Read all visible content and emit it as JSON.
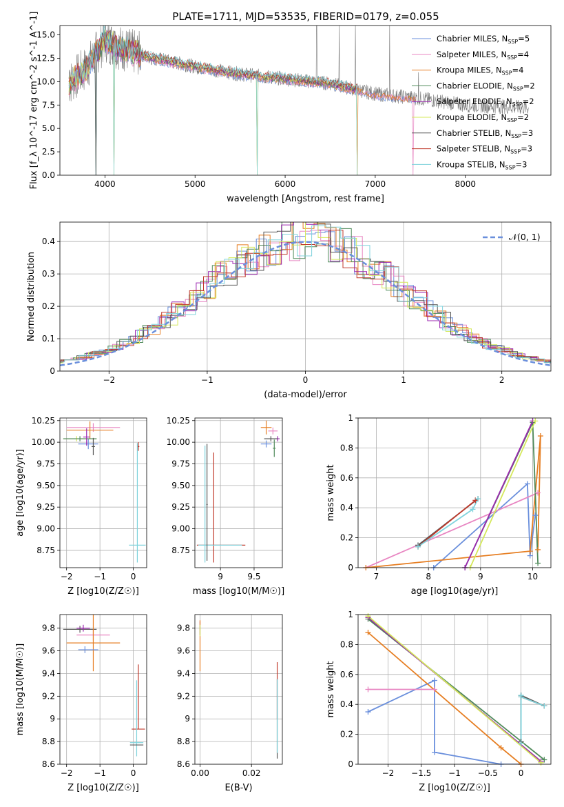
{
  "figure": {
    "title": "PLATE=1711, MJD=53535, FIBERID=0179, z=0.055"
  },
  "colors": {
    "Chabrier MILES": "#6a8fdc",
    "Salpeter MILES": "#e886c2",
    "Kroupa MILES": "#e67e22",
    "Chabrier ELODIE": "#4f8a5a",
    "Salpeter ELODIE": "#9c27b0",
    "Kroupa ELODIE": "#d4e85a",
    "Chabrier STELIB": "#555555",
    "Salpeter STELIB": "#c0392b",
    "Kroupa STELIB": "#7fd3dc",
    "data": "#777777",
    "normal": "#6a8fdc"
  },
  "chart_data": [
    {
      "id": "spectrum",
      "type": "line",
      "xlabel": "wavelength [Angstrom, rest frame]",
      "ylabel": "Flux [f_λ 10^-17 erg cm^-2 s^-1 A^-1]",
      "xlim": [
        3500,
        8950
      ],
      "ylim": [
        0,
        16
      ],
      "xticks": [
        4000,
        5000,
        6000,
        7000,
        8000
      ],
      "yticks": [
        0.0,
        2.5,
        5.0,
        7.5,
        10.0,
        12.5,
        15.0
      ],
      "grid": false,
      "legend_position": "top-right",
      "legend": [
        {
          "name": "Chabrier MILES",
          "nssp": 5
        },
        {
          "name": "Salpeter MILES",
          "nssp": 4
        },
        {
          "name": "Kroupa MILES",
          "nssp": 4
        },
        {
          "name": "Chabrier ELODIE",
          "nssp": 2
        },
        {
          "name": "Salpeter ELODIE",
          "nssp": 2
        },
        {
          "name": "Kroupa ELODIE",
          "nssp": 2
        },
        {
          "name": "Chabrier STELIB",
          "nssp": 3
        },
        {
          "name": "Salpeter STELIB",
          "nssp": 3
        },
        {
          "name": "Kroupa STELIB",
          "nssp": 3
        }
      ],
      "continuum_anchors": [
        [
          3600,
          9.8
        ],
        [
          3800,
          11.5
        ],
        [
          4000,
          14.5
        ],
        [
          4200,
          13.5
        ],
        [
          4500,
          12.6
        ],
        [
          5000,
          11.6
        ],
        [
          5500,
          10.8
        ],
        [
          6000,
          10.3
        ],
        [
          6500,
          9.8
        ],
        [
          7000,
          8.7
        ],
        [
          7500,
          8.2
        ],
        [
          8000,
          7.5
        ],
        [
          8500,
          7.3
        ],
        [
          8700,
          7.2
        ]
      ],
      "data_spikes": [
        [
          6350,
          16
        ],
        [
          6600,
          16
        ],
        [
          6780,
          16
        ],
        [
          7160,
          16
        ],
        [
          7480,
          11
        ]
      ],
      "model_dips": [
        [
          3900,
          0
        ],
        [
          4100,
          0
        ],
        [
          5690,
          0
        ],
        [
          6800,
          0
        ],
        [
          7420,
          0
        ]
      ]
    },
    {
      "id": "residuals",
      "type": "step",
      "xlabel": "(data-model)/error",
      "ylabel": "Normed distribution",
      "xlim": [
        -2.5,
        2.5
      ],
      "ylim": [
        0,
        0.46
      ],
      "xticks": [
        -2,
        -1,
        0,
        1,
        2
      ],
      "yticks": [
        0.0,
        0.1,
        0.2,
        0.3,
        0.4
      ],
      "grid": true,
      "legend": "N(0,1)",
      "legend_position": "top-right",
      "reference_curve": {
        "type": "normal",
        "mean": 0,
        "sigma": 1
      }
    },
    {
      "id": "age-vs-Z",
      "type": "errorbar",
      "xlabel": "Z [log10(Z/Z☉)]",
      "ylabel": "age [log10(age/yr)]",
      "xlim": [
        -2.2,
        0.4
      ],
      "ylim": [
        8.55,
        10.28
      ],
      "xticks": [
        -2,
        -1,
        0
      ],
      "yticks": [
        8.75,
        9.0,
        9.25,
        9.5,
        9.75,
        10.0,
        10.25
      ],
      "yticklabels": [
        "8.75",
        "9.00",
        "9.25",
        "9.50",
        "9.75",
        "10.00",
        "10.25"
      ],
      "grid": true,
      "points": [
        {
          "series": "Salpeter MILES",
          "x": -1.2,
          "xerr": [
            0.8,
            0.8
          ],
          "y": 10.17,
          "yerr": [
            0.05,
            0.05
          ]
        },
        {
          "series": "Kroupa MILES",
          "x": -1.3,
          "xerr": [
            0.7,
            0.7
          ],
          "y": 10.14,
          "yerr": [
            0.1,
            0.1
          ]
        },
        {
          "series": "Chabrier MILES",
          "x": -1.35,
          "xerr": [
            0.3,
            0.3
          ],
          "y": 9.98,
          "yerr": [
            0.06,
            0.06
          ]
        },
        {
          "series": "Kroupa ELODIE",
          "x": -1.7,
          "xerr": [
            0.4,
            0.6
          ],
          "y": 10.04,
          "yerr": [
            0.03,
            0.03
          ]
        },
        {
          "series": "Chabrier ELODIE",
          "x": -1.6,
          "xerr": [
            0.5,
            0.5
          ],
          "y": 10.04,
          "yerr": [
            0.03,
            0.03
          ]
        },
        {
          "series": "Salpeter ELODIE",
          "x": -1.4,
          "xerr": [
            0.1,
            0.1
          ],
          "y": 10.06,
          "yerr": [
            0.1,
            0.1
          ]
        },
        {
          "series": "Chabrier STELIB",
          "x": -1.2,
          "xerr": [
            0.05,
            0.05
          ],
          "y": 9.95,
          "yerr": [
            0.1,
            0.1
          ]
        },
        {
          "series": "Salpeter STELIB",
          "x": 0.15,
          "xerr": [
            0.03,
            0.03
          ],
          "y": 9.95,
          "yerr": [
            0.05,
            0.05
          ]
        },
        {
          "series": "Kroupa STELIB",
          "x": 0.12,
          "xerr": [
            0.25,
            0.25
          ],
          "y": 8.81,
          "yerr": [
            0.2,
            1.18
          ]
        }
      ]
    },
    {
      "id": "age-vs-mass",
      "type": "errorbar",
      "xlabel": "mass [log10(M/M☉)]",
      "ylabel": "",
      "xlim": [
        8.62,
        9.92
      ],
      "ylim": [
        8.55,
        10.28
      ],
      "xticks": [
        9.0,
        9.5
      ],
      "yticks": [
        8.75,
        9.0,
        9.25,
        9.5,
        9.75,
        10.0,
        10.25
      ],
      "yticklabels": [
        "8.75",
        "9.00",
        "9.25",
        "9.50",
        "9.75",
        "10.00",
        "10.25"
      ],
      "grid": true,
      "points": [
        {
          "series": "Kroupa MILES",
          "x": 9.68,
          "xerr": [
            0.08,
            0.08
          ],
          "y": 10.17,
          "yerr": [
            0.08,
            0.08
          ]
        },
        {
          "series": "Salpeter MILES",
          "x": 9.78,
          "xerr": [
            0.07,
            0.07
          ],
          "y": 10.13,
          "yerr": [
            0.04,
            0.04
          ]
        },
        {
          "series": "Chabrier MILES",
          "x": 9.68,
          "xerr": [
            0.08,
            0.08
          ],
          "y": 9.98,
          "yerr": [
            0.04,
            0.04
          ]
        },
        {
          "series": "Chabrier ELODIE",
          "x": 9.8,
          "xerr": [
            0.02,
            0.02
          ],
          "y": 9.93,
          "yerr": [
            0.1,
            0.1
          ]
        },
        {
          "series": "Salpeter ELODIE",
          "x": 9.85,
          "xerr": [
            0.03,
            0.03
          ],
          "y": 10.04,
          "yerr": [
            0.03,
            0.03
          ]
        },
        {
          "series": "Chabrier STELIB",
          "x": 9.75,
          "xerr": [
            0.1,
            0.1
          ],
          "y": 10.04,
          "yerr": [
            0.03,
            0.03
          ]
        },
        {
          "series": "Salpeter STELIB",
          "x": 8.9,
          "xerr": [
            0.25,
            0.47
          ],
          "y": 8.81,
          "yerr": [
            0.2,
            1.07
          ]
        },
        {
          "series": "Kroupa STELIB",
          "x": 8.77,
          "xerr": [
            0.1,
            0.55
          ],
          "y": 8.81,
          "yerr": [
            0.2,
            1.15
          ]
        },
        {
          "series": "Chabrier STELIB",
          "x": 8.8,
          "xerr": [
            0.01,
            0.01
          ],
          "y": 9.28,
          "yerr": [
            0.65,
            0.7
          ]
        }
      ]
    },
    {
      "id": "weight-vs-age",
      "type": "line",
      "xlabel": "age [log10(age/yr)]",
      "ylabel": "mass weight",
      "xlim": [
        6.65,
        10.35
      ],
      "ylim": [
        0,
        1.0
      ],
      "xticks": [
        7,
        8,
        9,
        10
      ],
      "yticks": [
        0.0,
        0.2,
        0.4,
        0.6,
        0.8,
        1.0
      ],
      "grid": true,
      "series": [
        {
          "name": "Chabrier MILES",
          "points": [
            [
              8.1,
              0.0
            ],
            [
              9.9,
              0.56
            ],
            [
              9.95,
              0.08
            ],
            [
              10.05,
              0.35
            ]
          ]
        },
        {
          "name": "Salpeter MILES",
          "points": [
            [
              6.8,
              0.0
            ],
            [
              10.1,
              0.5
            ]
          ]
        },
        {
          "name": "Kroupa MILES",
          "points": [
            [
              6.8,
              0.0
            ],
            [
              9.95,
              0.11
            ],
            [
              10.15,
              0.88
            ],
            [
              10.1,
              0.12
            ]
          ]
        },
        {
          "name": "Chabrier ELODIE",
          "points": [
            [
              8.7,
              0.0
            ],
            [
              10.0,
              0.97
            ],
            [
              10.1,
              0.03
            ]
          ]
        },
        {
          "name": "Salpeter ELODIE",
          "points": [
            [
              8.7,
              0.0
            ],
            [
              10.0,
              0.98
            ]
          ]
        },
        {
          "name": "Kroupa ELODIE",
          "points": [
            [
              8.8,
              0.0
            ],
            [
              10.05,
              0.98
            ]
          ]
        },
        {
          "name": "Chabrier STELIB",
          "points": [
            [
              7.8,
              0.15
            ],
            [
              8.95,
              0.46
            ]
          ]
        },
        {
          "name": "Salpeter STELIB",
          "points": [
            [
              7.8,
              0.14
            ],
            [
              8.9,
              0.45
            ]
          ]
        },
        {
          "name": "Kroupa STELIB",
          "points": [
            [
              7.8,
              0.14
            ],
            [
              8.85,
              0.39
            ],
            [
              8.95,
              0.46
            ]
          ]
        }
      ]
    },
    {
      "id": "mass-vs-Z",
      "type": "errorbar",
      "xlabel": "Z [log10(Z/Z☉)]",
      "ylabel": "mass [log10(M/M☉)]",
      "xlim": [
        -2.2,
        0.4
      ],
      "ylim": [
        8.6,
        9.92
      ],
      "xticks": [
        -2,
        -1,
        0
      ],
      "yticks": [
        8.6,
        8.8,
        9.0,
        9.2,
        9.4,
        9.6,
        9.8
      ],
      "grid": true,
      "points": [
        {
          "series": "Chabrier STELIB",
          "x": -1.6,
          "xerr": [
            0.5,
            0.5
          ],
          "y": 9.79,
          "yerr": [
            0.03,
            0.03
          ]
        },
        {
          "series": "Salpeter ELODIE",
          "x": -1.5,
          "xerr": [
            0.2,
            0.2
          ],
          "y": 9.8,
          "yerr": [
            0.03,
            0.03
          ]
        },
        {
          "series": "Salpeter MILES",
          "x": -1.2,
          "xerr": [
            0.5,
            0.5
          ],
          "y": 9.74,
          "yerr": [
            0.05,
            0.05
          ]
        },
        {
          "series": "Kroupa MILES",
          "x": -1.2,
          "xerr": [
            0.8,
            0.8
          ],
          "y": 9.67,
          "yerr": [
            0.25,
            0.25
          ]
        },
        {
          "series": "Chabrier MILES",
          "x": -1.45,
          "xerr": [
            0.2,
            0.4
          ],
          "y": 9.61,
          "yerr": [
            0.03,
            0.03
          ]
        },
        {
          "series": "Salpeter STELIB",
          "x": 0.15,
          "xerr": [
            0.2,
            0.2
          ],
          "y": 8.91,
          "yerr": [
            0.0,
            0.57
          ]
        },
        {
          "series": "Kroupa STELIB",
          "x": 0.1,
          "xerr": [
            0.2,
            0.2
          ],
          "y": 8.79,
          "yerr": [
            0.12,
            0.55
          ]
        },
        {
          "series": "Chabrier STELIB",
          "x": 0.1,
          "xerr": [
            0.2,
            0.2
          ],
          "y": 8.77,
          "yerr": [
            0.0,
            0.0
          ]
        }
      ]
    },
    {
      "id": "mass-vs-EBV",
      "type": "errorbar",
      "xlabel": "E(B-V)",
      "ylabel": "",
      "xlim": [
        -0.002,
        0.032
      ],
      "ylim": [
        8.6,
        9.92
      ],
      "xticks": [
        0.0,
        0.02
      ],
      "xticklabels": [
        "0.00",
        "0.02"
      ],
      "yticks": [
        8.6,
        8.8,
        9.0,
        9.2,
        9.4,
        9.6,
        9.8
      ],
      "grid": true,
      "points": [
        {
          "series": "Salpeter ELODIE",
          "x": 0.0,
          "xerr": [
            0,
            0
          ],
          "y": 9.8,
          "yerr": [
            0.06,
            0.06
          ]
        },
        {
          "series": "Kroupa MILES",
          "x": 0.0,
          "xerr": [
            0,
            0
          ],
          "y": 9.67,
          "yerr": [
            0.25,
            0.2
          ]
        },
        {
          "series": "Kroupa ELODIE",
          "x": 0.0,
          "xerr": [
            0,
            0
          ],
          "y": 9.78,
          "yerr": [
            0.05,
            0.05
          ]
        },
        {
          "series": "Salpeter STELIB",
          "x": 0.03,
          "xerr": [
            0,
            0
          ],
          "y": 9.3,
          "yerr": [
            0.3,
            0.2
          ]
        },
        {
          "series": "Chabrier STELIB",
          "x": 0.03,
          "xerr": [
            0,
            0
          ],
          "y": 8.95,
          "yerr": [
            0.3,
            0.4
          ]
        },
        {
          "series": "Kroupa STELIB",
          "x": 0.03,
          "xerr": [
            0,
            0
          ],
          "y": 9.0,
          "yerr": [
            0.3,
            0.35
          ]
        }
      ]
    },
    {
      "id": "weight-vs-Z",
      "type": "line",
      "xlabel": "Z [log10(Z/Z☉)]",
      "ylabel": "mass weight",
      "xlim": [
        -2.45,
        0.45
      ],
      "ylim": [
        0,
        1.0
      ],
      "xticks": [
        -2.0,
        -1.5,
        -1.0,
        -0.5,
        0.0
      ],
      "yticks": [
        0.0,
        0.2,
        0.4,
        0.6,
        0.8,
        1.0
      ],
      "grid": true,
      "series": [
        {
          "name": "Chabrier MILES",
          "points": [
            [
              -2.3,
              0.35
            ],
            [
              -1.3,
              0.56
            ],
            [
              -1.3,
              0.08
            ],
            [
              -0.3,
              0.0
            ],
            [
              0.0,
              0.0
            ]
          ]
        },
        {
          "name": "Salpeter MILES",
          "points": [
            [
              -2.3,
              0.5
            ],
            [
              -1.3,
              0.5
            ]
          ]
        },
        {
          "name": "Kroupa MILES",
          "points": [
            [
              -2.3,
              0.88
            ],
            [
              -0.3,
              0.11
            ],
            [
              0.0,
              0.0
            ]
          ]
        },
        {
          "name": "Chabrier ELODIE",
          "points": [
            [
              -2.3,
              0.97
            ],
            [
              0.35,
              0.03
            ]
          ]
        },
        {
          "name": "Salpeter ELODIE",
          "points": [
            [
              -2.3,
              0.98
            ],
            [
              0.3,
              0.02
            ]
          ]
        },
        {
          "name": "Kroupa ELODIE",
          "points": [
            [
              -2.3,
              0.99
            ],
            [
              0.3,
              0.01
            ]
          ]
        },
        {
          "name": "Chabrier STELIB",
          "points": [
            [
              0.0,
              0.46
            ],
            [
              0.0,
              0.15
            ],
            [
              0.0,
              0.46
            ],
            [
              0.35,
              0.39
            ]
          ]
        },
        {
          "name": "Salpeter STELIB",
          "points": [
            [
              0.0,
              0.45
            ],
            [
              0.35,
              0.39
            ]
          ]
        },
        {
          "name": "Kroupa STELIB",
          "points": [
            [
              0.0,
              0.46
            ],
            [
              0.0,
              0.14
            ],
            [
              0.0,
              0.45
            ],
            [
              0.35,
              0.39
            ]
          ]
        }
      ]
    }
  ]
}
